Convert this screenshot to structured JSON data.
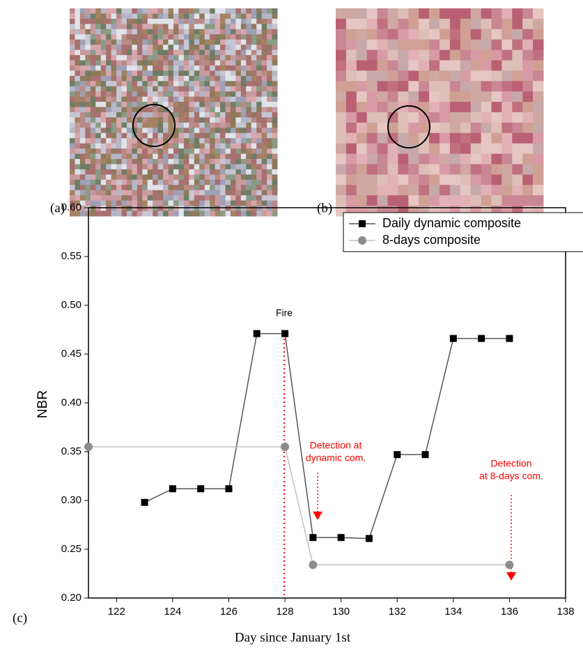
{
  "figure": {
    "panel_labels": [
      "(a)",
      "(b)",
      "(c)"
    ]
  },
  "chart_data": {
    "type": "line",
    "xlabel": "Day since January 1st",
    "ylabel": "NBR",
    "xlim": [
      121,
      138
    ],
    "xticks": [
      122,
      124,
      126,
      128,
      130,
      132,
      134,
      136,
      138
    ],
    "ylim": [
      0.2,
      0.6
    ],
    "yticks": [
      {
        "value": 0.2,
        "label": "0.20"
      },
      0.25,
      {
        "value": 0.3,
        "label": "0.30"
      },
      0.35,
      {
        "value": 0.4,
        "label": "0.40"
      },
      0.45,
      {
        "value": 0.5,
        "label": "0.50"
      },
      0.55,
      {
        "value": 0.6,
        "label": "0.60"
      }
    ],
    "grid": false,
    "legend": "top-right",
    "series": [
      {
        "name": "Daily dynamic composite",
        "color": "#000000",
        "line_color": "#555555",
        "marker": "square",
        "x": [
          123,
          124,
          125,
          126,
          127,
          128,
          129,
          130,
          131,
          132,
          133,
          134,
          135,
          136
        ],
        "values": [
          0.298,
          0.312,
          0.312,
          0.312,
          0.471,
          0.471,
          0.262,
          0.262,
          0.261,
          0.347,
          0.347,
          0.466,
          0.466,
          0.466
        ]
      },
      {
        "name": "8-days composite",
        "color": "#8c8c8c",
        "line_color": "#c0c0c0",
        "marker": "circle",
        "x": [
          121,
          128,
          129,
          136
        ],
        "values": [
          0.355,
          0.355,
          0.234,
          0.234
        ]
      }
    ],
    "annotations": [
      [
        "Fire"
      ],
      [
        "Detection at",
        "dynamic com."
      ],
      [
        "Detection",
        "at 8-days com."
      ]
    ],
    "annotation_color": "#ff0000"
  }
}
